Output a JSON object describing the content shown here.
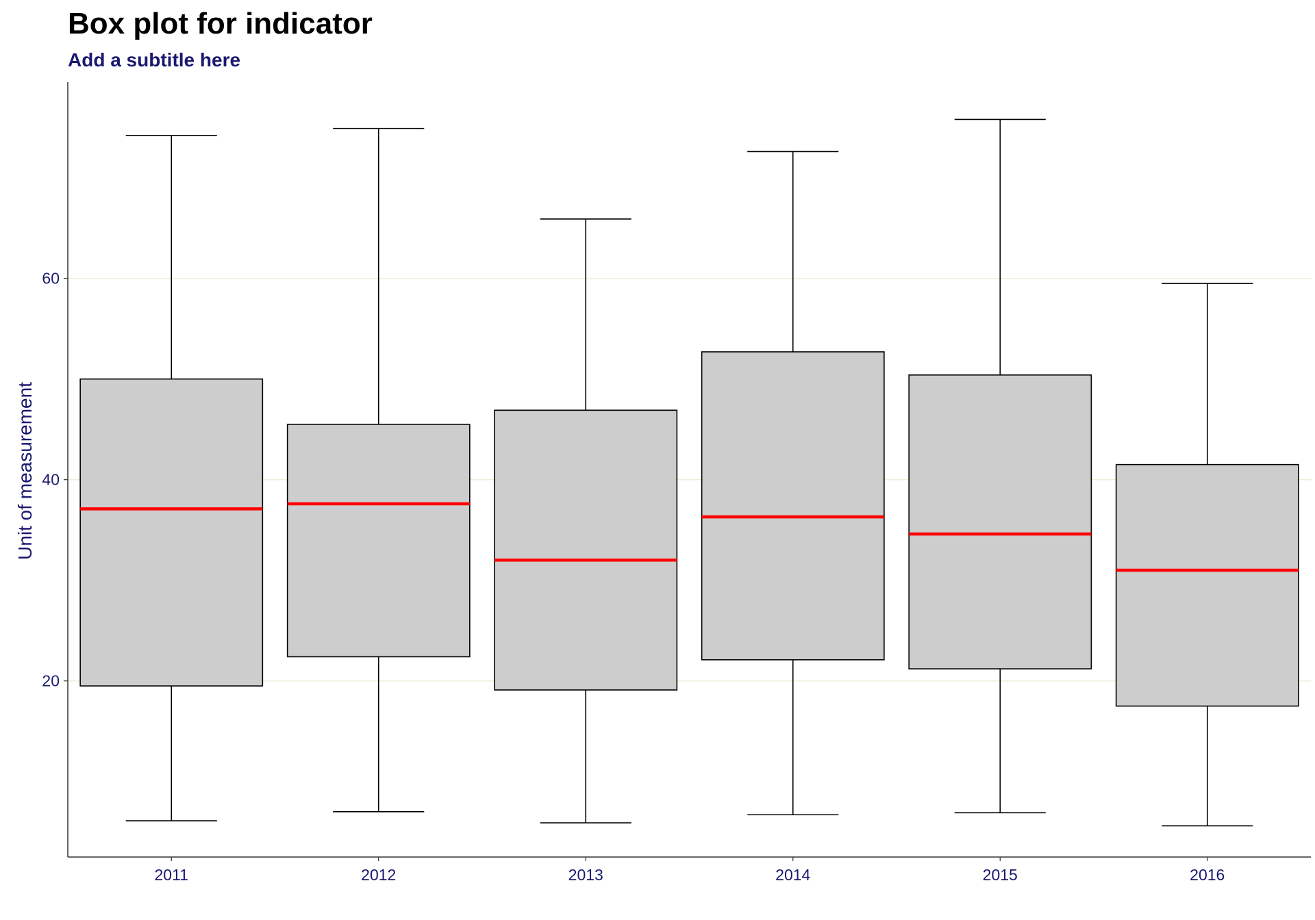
{
  "title": "Box plot for indicator",
  "subtitle": "Add a subtitle here",
  "colors": {
    "box_fill": "#cdcdcd",
    "box_stroke": "#000000",
    "median": "#ff0000",
    "grid": "#eeeedd",
    "text": "#191970"
  },
  "chart_data": {
    "type": "box",
    "title": "Box plot for indicator",
    "subtitle": "Add a subtitle here",
    "xlabel": "",
    "ylabel": "Unit of measurement",
    "ylim": [
      2.5,
      79.5
    ],
    "yticks": [
      20,
      40,
      60
    ],
    "grid": "horizontal",
    "categories": [
      "2011",
      "2012",
      "2013",
      "2014",
      "2015",
      "2016"
    ],
    "boxes": [
      {
        "category": "2011",
        "whisker_low": 6.1,
        "q1": 19.5,
        "median": 37.1,
        "q3": 50.0,
        "whisker_high": 74.2
      },
      {
        "category": "2012",
        "whisker_low": 7.0,
        "q1": 22.4,
        "median": 37.6,
        "q3": 45.5,
        "whisker_high": 74.9
      },
      {
        "category": "2013",
        "whisker_low": 5.9,
        "q1": 19.1,
        "median": 32.0,
        "q3": 46.9,
        "whisker_high": 65.9
      },
      {
        "category": "2014",
        "whisker_low": 6.7,
        "q1": 22.1,
        "median": 36.3,
        "q3": 52.7,
        "whisker_high": 72.6
      },
      {
        "category": "2015",
        "whisker_low": 6.9,
        "q1": 21.2,
        "median": 34.6,
        "q3": 50.4,
        "whisker_high": 75.8
      },
      {
        "category": "2016",
        "whisker_low": 5.6,
        "q1": 17.5,
        "median": 31.0,
        "q3": 41.5,
        "whisker_high": 59.5
      }
    ]
  }
}
